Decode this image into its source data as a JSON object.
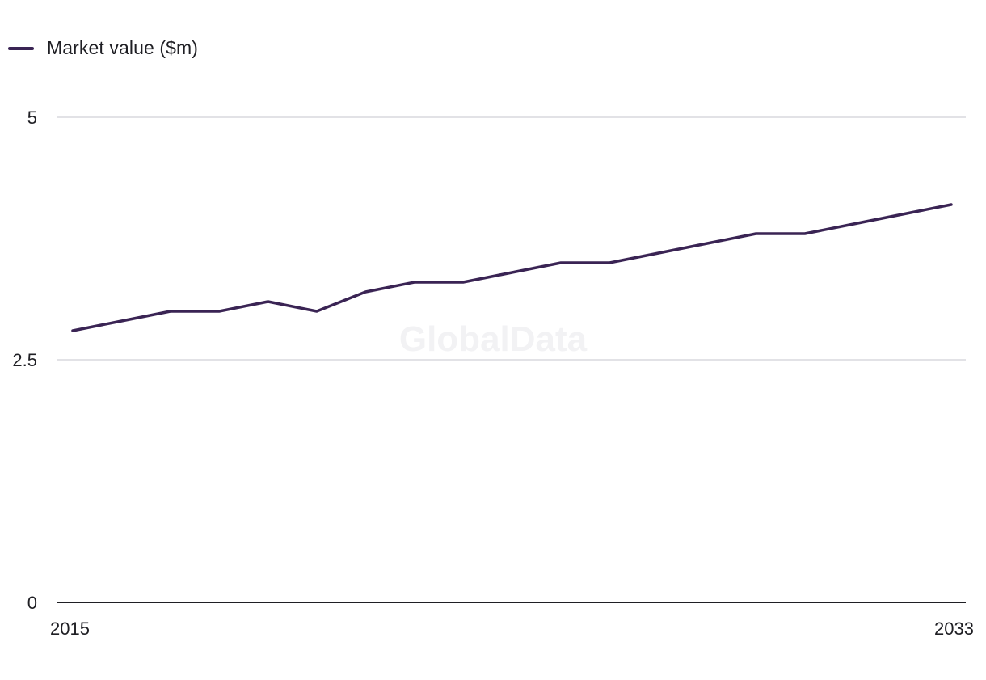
{
  "legend": {
    "label": "Market value ($m)"
  },
  "watermark": "GlobalData",
  "colors": {
    "series": "#3a2454",
    "grid": "#d9d9de",
    "axis": "#1f1f24"
  },
  "chart_data": {
    "type": "line",
    "x": [
      2015,
      2016,
      2017,
      2018,
      2019,
      2020,
      2021,
      2022,
      2023,
      2024,
      2025,
      2026,
      2027,
      2028,
      2029,
      2030,
      2031,
      2032,
      2033
    ],
    "series": [
      {
        "name": "Market value ($m)",
        "values": [
          2.8,
          2.9,
          3.0,
          3.0,
          3.1,
          3.0,
          3.2,
          3.3,
          3.3,
          3.4,
          3.5,
          3.5,
          3.6,
          3.7,
          3.8,
          3.8,
          3.9,
          4.0,
          4.1
        ]
      }
    ],
    "ylim": [
      0,
      5
    ],
    "yticks": [
      "0",
      "2.5",
      "5"
    ],
    "xticks": [
      "2015",
      "2033"
    ],
    "grid": true,
    "legend_position": "top-left"
  }
}
